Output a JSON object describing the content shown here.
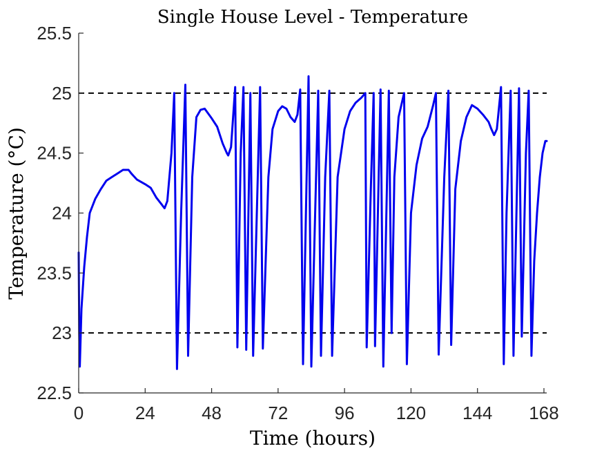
{
  "chart_data": {
    "type": "line",
    "title": "Single House Level - Temperature",
    "xlabel": "Time (hours)",
    "ylabel": "Temperature (°C)",
    "xlim": [
      0,
      169
    ],
    "ylim": [
      22.5,
      25.5
    ],
    "xticks": [
      0,
      24,
      48,
      72,
      96,
      120,
      144,
      168
    ],
    "yticks": [
      22.5,
      23,
      23.5,
      24,
      24.5,
      25,
      25.5
    ],
    "ytick_labels": [
      "22.5",
      "23",
      "23.5",
      "24",
      "24.5",
      "25",
      "25.5"
    ],
    "grid": false,
    "reference_lines": [
      {
        "y": 25,
        "style": "dashed",
        "color": "#000000"
      },
      {
        "y": 23,
        "style": "dashed",
        "color": "#000000"
      }
    ],
    "series": [
      {
        "color": "#0000ee",
        "points": [
          [
            0,
            23.67
          ],
          [
            0.2,
            23.0
          ],
          [
            0.4,
            22.72
          ],
          [
            1,
            23.2
          ],
          [
            2,
            23.55
          ],
          [
            3,
            23.8
          ],
          [
            4,
            24.0
          ],
          [
            6,
            24.12
          ],
          [
            8,
            24.2
          ],
          [
            10,
            24.27
          ],
          [
            12,
            24.3
          ],
          [
            14,
            24.33
          ],
          [
            16,
            24.36
          ],
          [
            18,
            24.36
          ],
          [
            19,
            24.33
          ],
          [
            21,
            24.28
          ],
          [
            24,
            24.24
          ],
          [
            26,
            24.21
          ],
          [
            28,
            24.13
          ],
          [
            30,
            24.07
          ],
          [
            31,
            24.04
          ],
          [
            32,
            24.1
          ],
          [
            33.5,
            24.5
          ],
          [
            34.5,
            25.0
          ],
          [
            35.5,
            22.7
          ],
          [
            37,
            24.0
          ],
          [
            38.5,
            25.07
          ],
          [
            39.5,
            22.81
          ],
          [
            41,
            24.3
          ],
          [
            42.5,
            24.8
          ],
          [
            44,
            24.86
          ],
          [
            45.5,
            24.87
          ],
          [
            48,
            24.79
          ],
          [
            50,
            24.72
          ],
          [
            52,
            24.58
          ],
          [
            53.5,
            24.5
          ],
          [
            54,
            24.48
          ],
          [
            55,
            24.55
          ],
          [
            56.5,
            25.05
          ],
          [
            57.3,
            22.88
          ],
          [
            58.5,
            24.5
          ],
          [
            59.5,
            25.05
          ],
          [
            60.5,
            22.86
          ],
          [
            62,
            25.0
          ],
          [
            63,
            22.81
          ],
          [
            65.5,
            25.05
          ],
          [
            66.5,
            22.87
          ],
          [
            68.5,
            24.3
          ],
          [
            70,
            24.7
          ],
          [
            72,
            24.85
          ],
          [
            73.5,
            24.89
          ],
          [
            75,
            24.87
          ],
          [
            76.5,
            24.8
          ],
          [
            78,
            24.76
          ],
          [
            79,
            24.82
          ],
          [
            80,
            25.03
          ],
          [
            81,
            22.74
          ],
          [
            83,
            25.14
          ],
          [
            84,
            22.72
          ],
          [
            86.5,
            25.02
          ],
          [
            87.5,
            22.81
          ],
          [
            89,
            24.3
          ],
          [
            90.5,
            25.02
          ],
          [
            91.5,
            22.81
          ],
          [
            93.5,
            24.3
          ],
          [
            96,
            24.7
          ],
          [
            98,
            24.85
          ],
          [
            100,
            24.92
          ],
          [
            102,
            24.96
          ],
          [
            103.5,
            25.0
          ],
          [
            104,
            22.88
          ],
          [
            105.5,
            24.2
          ],
          [
            106.5,
            25.0
          ],
          [
            107,
            22.89
          ],
          [
            109,
            25.03
          ],
          [
            110,
            22.72
          ],
          [
            112,
            25.02
          ],
          [
            113,
            23.0
          ],
          [
            114,
            24.3
          ],
          [
            115.5,
            24.8
          ],
          [
            117.5,
            25.0
          ],
          [
            118.5,
            22.74
          ],
          [
            120,
            24.0
          ],
          [
            122,
            24.4
          ],
          [
            124,
            24.62
          ],
          [
            126,
            24.72
          ],
          [
            128,
            24.9
          ],
          [
            129,
            25.0
          ],
          [
            130,
            22.82
          ],
          [
            132,
            24.3
          ],
          [
            133.5,
            25.02
          ],
          [
            134.5,
            22.9
          ],
          [
            136,
            24.2
          ],
          [
            138,
            24.6
          ],
          [
            140,
            24.8
          ],
          [
            142,
            24.9
          ],
          [
            144,
            24.87
          ],
          [
            146,
            24.82
          ],
          [
            148,
            24.76
          ],
          [
            149,
            24.7
          ],
          [
            150,
            24.65
          ],
          [
            151,
            24.7
          ],
          [
            152.5,
            25.05
          ],
          [
            153.5,
            22.74
          ],
          [
            154.5,
            24.0
          ],
          [
            156,
            25.02
          ],
          [
            157,
            22.81
          ],
          [
            159,
            25.04
          ],
          [
            160,
            22.97
          ],
          [
            161.5,
            24.5
          ],
          [
            162.5,
            25.02
          ],
          [
            163.5,
            22.81
          ],
          [
            164.5,
            23.6
          ],
          [
            165.5,
            24.0
          ],
          [
            166.5,
            24.3
          ],
          [
            167.5,
            24.5
          ],
          [
            168.5,
            24.6
          ],
          [
            169,
            24.6
          ]
        ]
      }
    ]
  }
}
